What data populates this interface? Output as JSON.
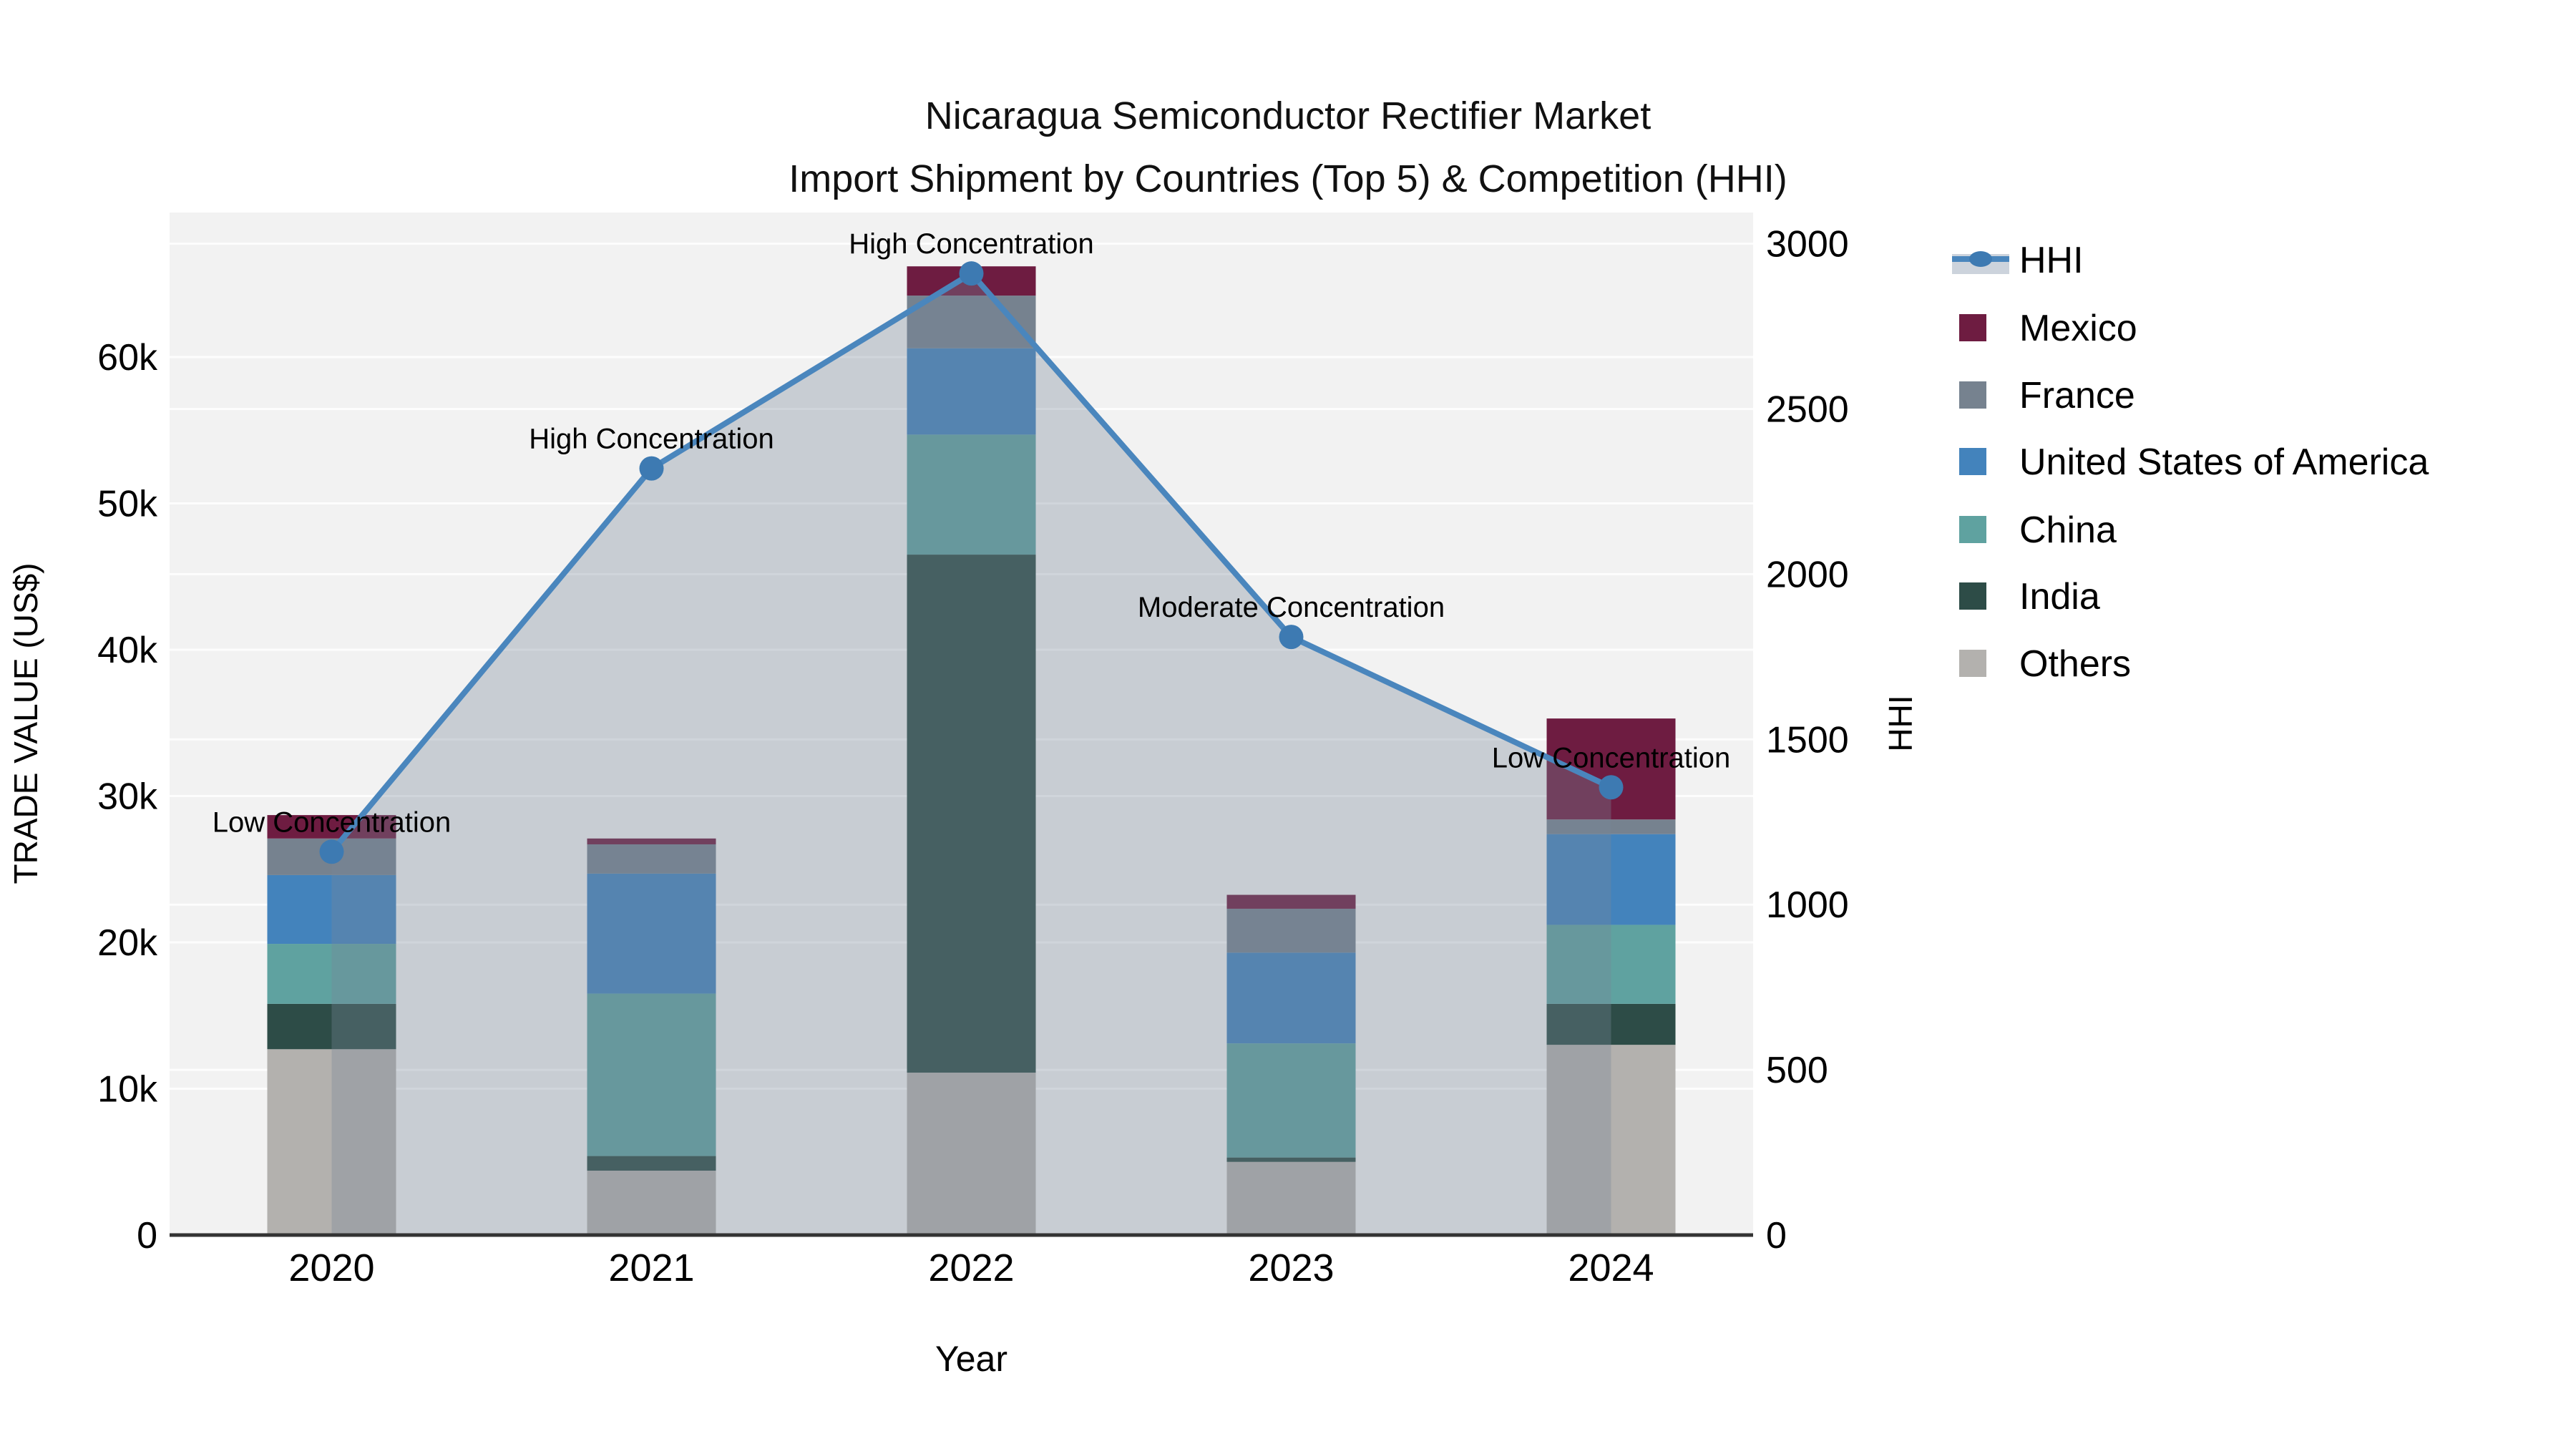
{
  "title": {
    "line1": "Nicaragua Semiconductor Rectifier Market",
    "line2": "Import Shipment by Countries (Top 5) & Competition (HHI)"
  },
  "axes": {
    "left": {
      "label": "TRADE VALUE (US$)",
      "tick_labels": [
        "0",
        "10k",
        "20k",
        "30k",
        "40k",
        "50k",
        "60k"
      ],
      "tick_values": [
        0,
        10000,
        20000,
        30000,
        40000,
        50000,
        60000
      ],
      "max": 70000
    },
    "right": {
      "label": "HHI",
      "tick_labels": [
        "0",
        "500",
        "1000",
        "1500",
        "2000",
        "2500",
        "3000"
      ],
      "tick_values": [
        0,
        500,
        1000,
        1500,
        2000,
        2500,
        3000
      ],
      "max": 3000
    },
    "x": {
      "label": "Year",
      "tick_labels": [
        "2020",
        "2021",
        "2022",
        "2023",
        "2024"
      ]
    }
  },
  "legend": {
    "entries": [
      {
        "name": "HHI",
        "type": "line",
        "color": "#4a86bd",
        "band_color": "#ccd3dc"
      },
      {
        "name": "Mexico",
        "type": "swatch",
        "color": "#6e1c41"
      },
      {
        "name": "France",
        "type": "swatch",
        "color": "#76828f"
      },
      {
        "name": "United States of America",
        "type": "swatch",
        "color": "#4383bc"
      },
      {
        "name": "China",
        "type": "swatch",
        "color": "#5fa2a0"
      },
      {
        "name": "India",
        "type": "swatch",
        "color": "#2d4c47"
      },
      {
        "name": "Others",
        "type": "swatch",
        "color": "#b3b1ae"
      }
    ]
  },
  "chart_data": {
    "type": "combo: stacked-bar + line",
    "title": "Nicaragua Semiconductor Rectifier Market — Import Shipment by Countries (Top 5) & Competition (HHI)",
    "categories": [
      "2020",
      "2021",
      "2022",
      "2023",
      "2024"
    ],
    "xlabel": "Year",
    "ylabel_left": "TRADE VALUE (US$)",
    "ylabel_right": "HHI",
    "ylim_left": [
      0,
      70000
    ],
    "ylim_right": [
      0,
      3000
    ],
    "grid": "on (left 10k steps and right 500 steps, white lines on light gray panel)",
    "legend_position": "outside upper right",
    "stack_order_bottom_to_top": [
      "Others",
      "India",
      "China",
      "United States of America",
      "France",
      "Mexico"
    ],
    "series": [
      {
        "name": "Mexico",
        "color": "#6e1c41",
        "values": [
          1600,
          400,
          2000,
          950,
          6900
        ]
      },
      {
        "name": "France",
        "color": "#76828f",
        "values": [
          2500,
          2000,
          3600,
          3000,
          1000
        ]
      },
      {
        "name": "United States of America",
        "color": "#4383bc",
        "values": [
          4700,
          8200,
          5900,
          6200,
          6200
        ]
      },
      {
        "name": "China",
        "color": "#5fa2a0",
        "values": [
          4100,
          11100,
          8200,
          7800,
          5400
        ]
      },
      {
        "name": "India",
        "color": "#2d4c47",
        "values": [
          3100,
          1000,
          35400,
          300,
          2800
        ]
      },
      {
        "name": "Others",
        "color": "#b3b1ae",
        "values": [
          12700,
          4400,
          11100,
          5000,
          13000
        ]
      }
    ],
    "bar_totals": [
      28700,
      27100,
      66200,
      23250,
      35300
    ],
    "line_series": {
      "name": "HHI",
      "color": "#4a86bd",
      "marker_color": "#3d7ab2",
      "fill_color": "rgba(119,136,153,0.34)",
      "values": [
        1160,
        2320,
        2910,
        1810,
        1355
      ]
    },
    "annotations": [
      {
        "category": "2020",
        "text": "Low Concentration"
      },
      {
        "category": "2021",
        "text": "High Concentration"
      },
      {
        "category": "2022",
        "text": "High Concentration"
      },
      {
        "category": "2023",
        "text": "Moderate Concentration"
      },
      {
        "category": "2024",
        "text": "Low Concentration"
      }
    ]
  },
  "style": {
    "panel_bg": "#f2f2f2",
    "figure_bg": "#ffffff",
    "gridline_color": "rgba(255,255,255,0.8)",
    "spine_color": "#333333"
  }
}
